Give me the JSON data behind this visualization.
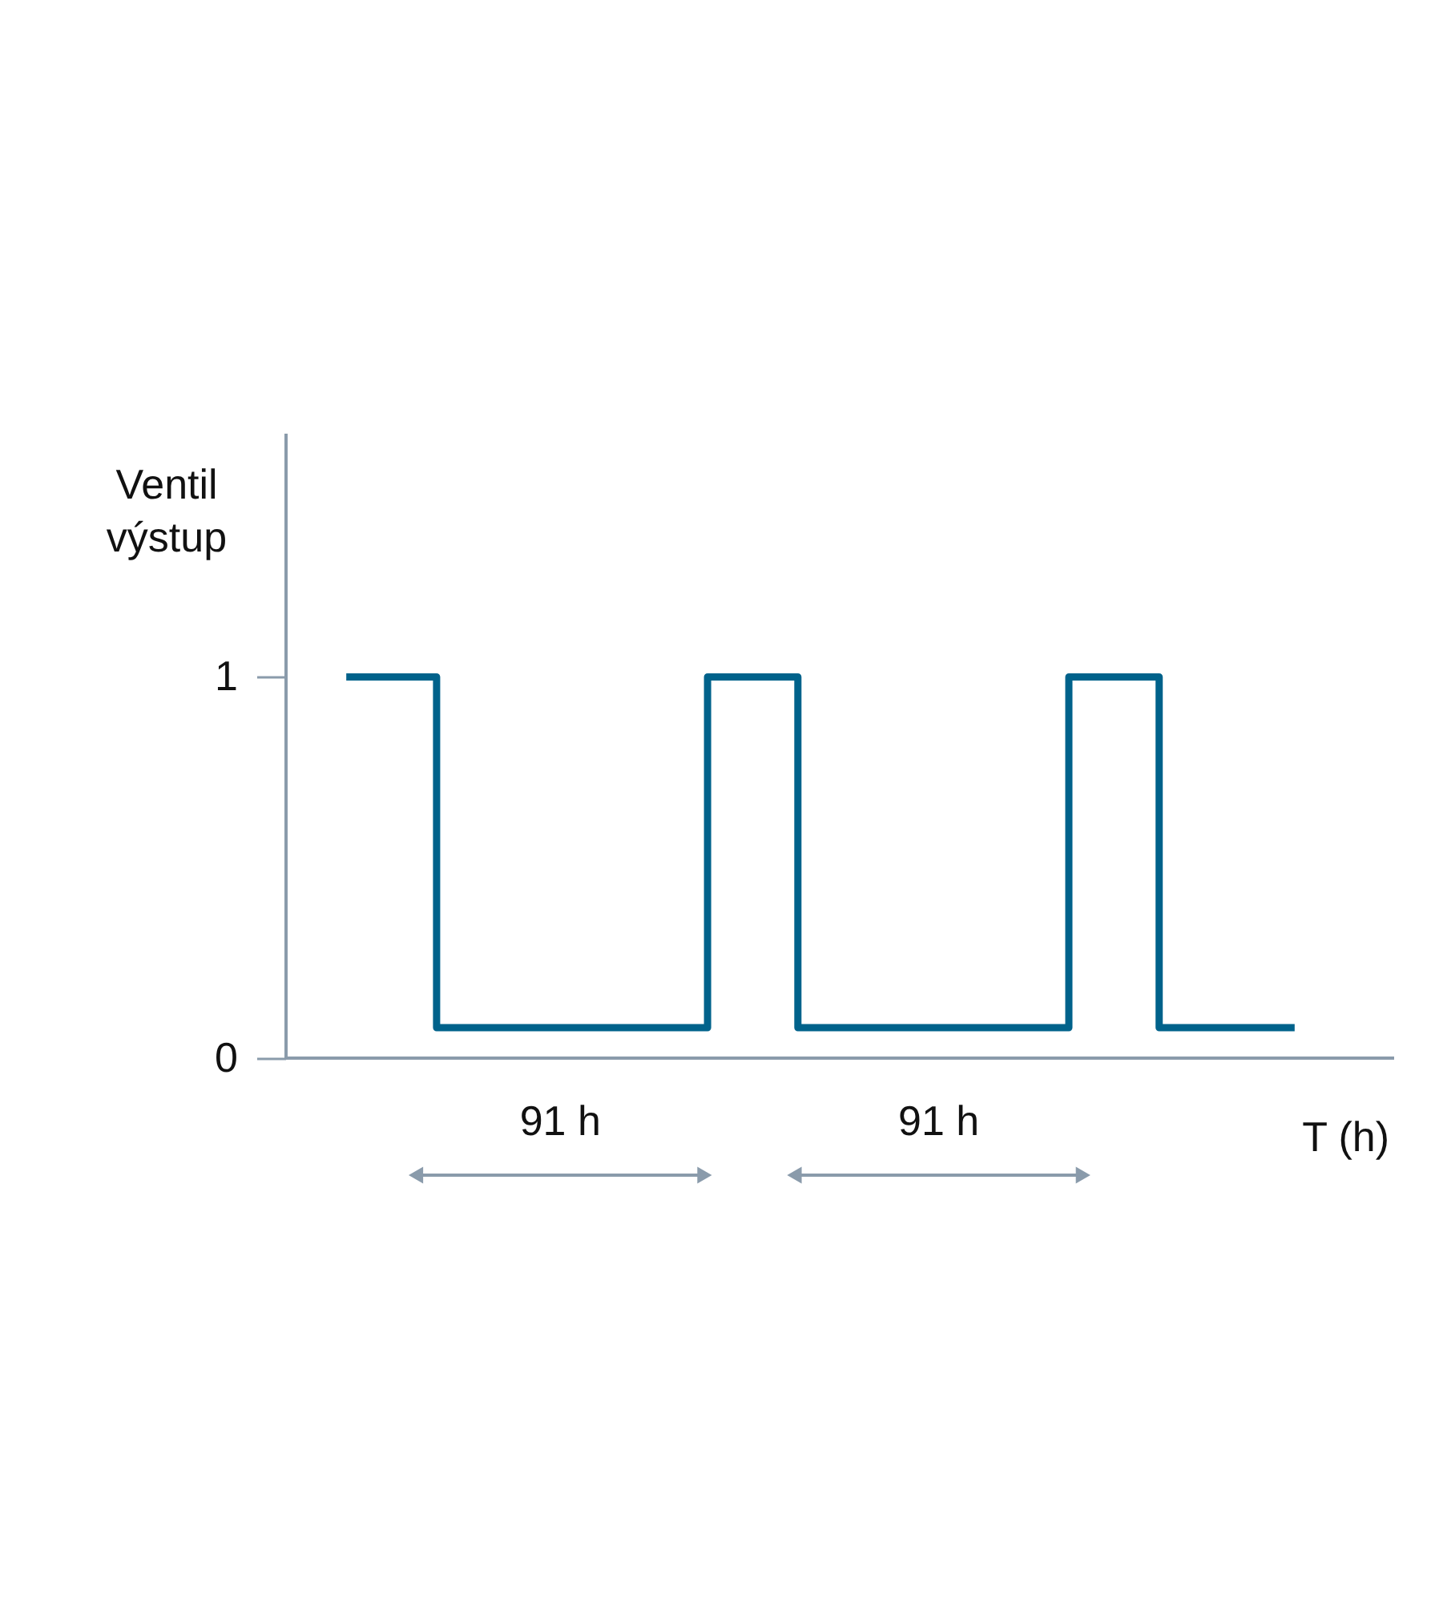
{
  "chart_data": {
    "type": "step",
    "xlabel": "T (h)",
    "ylabel": "Ventil výstup",
    "categories": [
      null,
      null,
      null,
      null,
      null,
      null,
      null,
      null,
      null,
      null,
      null,
      null,
      null,
      null,
      null,
      null,
      null,
      null,
      null,
      null,
      null,
      null
    ],
    "series": [
      {
        "color": "#00628b",
        "values": [
          1,
          1,
          0.08,
          0.08,
          0.08,
          0.08,
          0.08,
          0.08,
          1,
          1,
          0.08,
          0.08,
          0.08,
          0.08,
          0.08,
          0.08,
          1,
          1,
          0.08,
          0.08,
          0.08,
          0.08
        ]
      }
    ],
    "ylim": [
      0,
      1.64
    ],
    "yticks": [
      0,
      1
    ],
    "tick_labels": "y",
    "grid": false,
    "marker": "none",
    "annotations": [
      "91 h",
      "91 h"
    ]
  }
}
